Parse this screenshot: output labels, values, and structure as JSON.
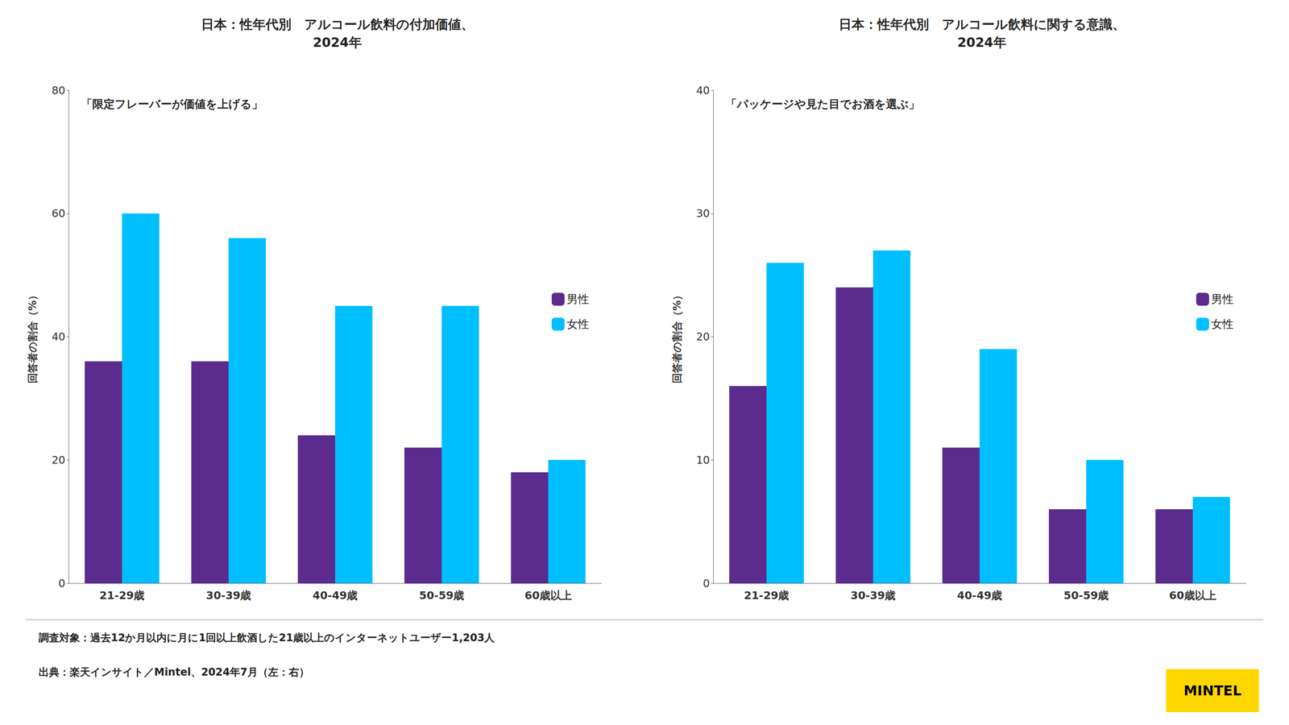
{
  "chart_data": [
    {
      "type": "bar",
      "title": "日本：性年代別　アルコール飲料の付加価値、\n2024年",
      "subtitle": "「限定フレーバーが価値を上げる」",
      "categories": [
        "21-29歳",
        "30-39歳",
        "40-49歳",
        "50-59歳",
        "60歳以上"
      ],
      "series": [
        {
          "name": "男性",
          "color": "#5B2C8D",
          "values": [
            36,
            36,
            24,
            22,
            18
          ]
        },
        {
          "name": "女性",
          "color": "#00BFFF",
          "values": [
            60,
            56,
            45,
            45,
            20
          ]
        }
      ],
      "ylabel": "回答者の割合（%）",
      "ylim": [
        0,
        80
      ],
      "yticks": [
        0,
        20,
        40,
        60,
        80
      ],
      "grid": false,
      "legend": "right"
    },
    {
      "type": "bar",
      "title": "日本：性年代別　アルコール飲料に関する意識、\n2024年",
      "subtitle": "「パッケージや見た目でお酒を選ぶ」",
      "categories": [
        "21-29歳",
        "30-39歳",
        "40-49歳",
        "50-59歳",
        "60歳以上"
      ],
      "series": [
        {
          "name": "男性",
          "color": "#5B2C8D",
          "values": [
            16,
            24,
            11,
            6,
            6
          ]
        },
        {
          "name": "女性",
          "color": "#00BFFF",
          "values": [
            26,
            27,
            19,
            10,
            7
          ]
        }
      ],
      "ylabel": "回答者の割合（%）",
      "ylim": [
        0,
        40
      ],
      "yticks": [
        0,
        10,
        20,
        30,
        40
      ],
      "grid": false,
      "legend": "right"
    }
  ],
  "annotations": [
    "調査対象：過去12か月以内に月に1回以上飲酒した21歳以上のインターネットユーザー1,203人",
    "出典：楽天インサイト／Mintel、2024年7月（左：右）",
    "MINTEL"
  ]
}
